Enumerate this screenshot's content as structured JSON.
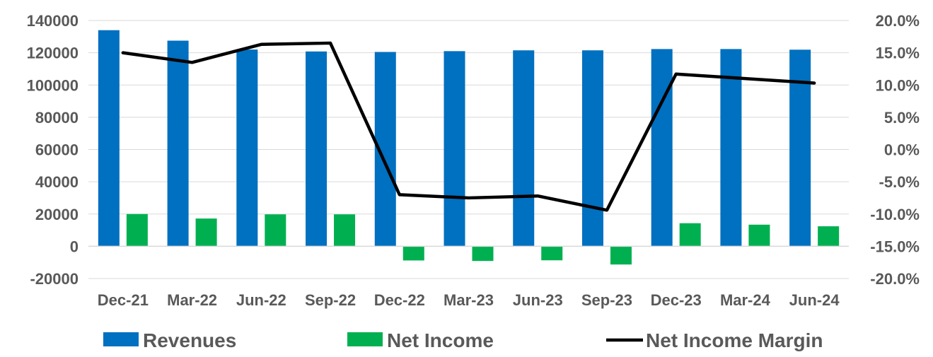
{
  "chart_data": {
    "type": "bar",
    "categories": [
      "Dec-21",
      "Mar-22",
      "Jun-22",
      "Sep-22",
      "Dec-22",
      "Mar-23",
      "Jun-23",
      "Sep-23",
      "Dec-23",
      "Mar-24",
      "Jun-24"
    ],
    "series": [
      {
        "name": "Revenues",
        "type": "bar",
        "axis": "left",
        "color": "#0070C0",
        "values": [
          134000,
          127500,
          122000,
          120800,
          120500,
          121000,
          121500,
          121500,
          122300,
          122300,
          121900
        ]
      },
      {
        "name": "Net Income",
        "type": "bar",
        "axis": "left",
        "color": "#00B050",
        "values": [
          20000,
          17200,
          19800,
          19800,
          -8800,
          -9100,
          -8700,
          -11300,
          14300,
          13400,
          12400
        ]
      },
      {
        "name": "Net Income Margin",
        "type": "line",
        "axis": "right",
        "color": "#000000",
        "values": [
          0.15,
          0.135,
          0.163,
          0.165,
          -0.07,
          -0.075,
          -0.072,
          -0.094,
          0.117,
          0.11,
          0.103
        ]
      }
    ],
    "y_left": {
      "min": -20000,
      "max": 140000,
      "step": 20000,
      "tick_labels": [
        "-20000",
        "0",
        "20000",
        "40000",
        "60000",
        "80000",
        "100000",
        "120000",
        "140000"
      ]
    },
    "y_right": {
      "min": -0.2,
      "max": 0.2,
      "step": 0.05,
      "tick_labels": [
        "-20.0%",
        "-15.0%",
        "-10.0%",
        "-5.0%",
        "0.0%",
        "5.0%",
        "10.0%",
        "15.0%",
        "20.0%"
      ]
    },
    "grid": true,
    "legend_position": "bottom"
  }
}
